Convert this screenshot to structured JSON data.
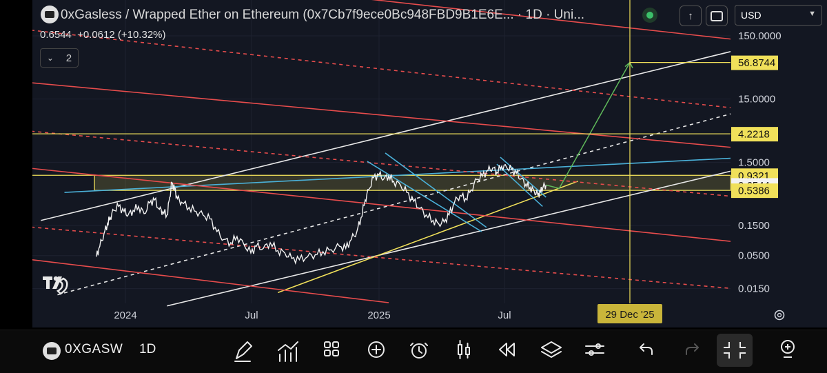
{
  "header": {
    "title": "0xGasless / Wrapped Ether on Ethereum (0x7Cb7f9ece0Bc948FBD9B1E6E... · 1D · Uni...",
    "price": "0.6544",
    "change": "+0.0612 (+10.32%)",
    "indicators_count": "2",
    "currency": "USD",
    "colors": {
      "status_dot": "#3cbf6a",
      "accent_yellow": "#f0e05a"
    }
  },
  "bottom": {
    "symbol": "0XGASW",
    "timeframe": "1D"
  },
  "chart_data": {
    "type": "line",
    "yscale": "log",
    "ylim": [
      0.008,
      250
    ],
    "y_ticks": [
      "150.0000",
      "15.0000",
      "1.5000",
      "0.1500",
      "0.0500",
      "0.0150"
    ],
    "x_ticks": [
      "2024",
      "Jul",
      "2025",
      "Jul"
    ],
    "price_labels": [
      {
        "text": "56.8744",
        "style": "yellow"
      },
      {
        "text": "4.2218",
        "style": "yellow"
      },
      {
        "text": "0.9321",
        "style": "yellow"
      },
      {
        "text": "0.6544",
        "style": "white"
      },
      {
        "text": "0.5386",
        "style": "yellow"
      }
    ],
    "crosshair_date": "29 Dec '25",
    "zone": {
      "high": 0.9321,
      "low": 0.5386
    },
    "series": [
      {
        "values": [
          [
            "2023-11-20",
            0.048
          ],
          [
            "2023-11-25",
            0.07
          ],
          [
            "2023-12-01",
            0.11
          ],
          [
            "2023-12-06",
            0.16
          ],
          [
            "2023-12-10",
            0.2
          ],
          [
            "2023-12-15",
            0.26
          ],
          [
            "2023-12-22",
            0.3
          ],
          [
            "2023-12-30",
            0.25
          ],
          [
            "2024-01-05",
            0.22
          ],
          [
            "2024-01-12",
            0.26
          ],
          [
            "2024-01-20",
            0.3
          ],
          [
            "2024-01-28",
            0.23
          ],
          [
            "2024-02-05",
            0.34
          ],
          [
            "2024-02-12",
            0.38
          ],
          [
            "2024-02-19",
            0.27
          ],
          [
            "2024-02-24",
            0.25
          ],
          [
            "2024-03-01",
            0.22
          ],
          [
            "2024-03-05",
            0.42
          ],
          [
            "2024-03-08",
            0.72
          ],
          [
            "2024-03-12",
            0.55
          ],
          [
            "2024-03-16",
            0.4
          ],
          [
            "2024-03-22",
            0.35
          ],
          [
            "2024-04-02",
            0.29
          ],
          [
            "2024-04-12",
            0.25
          ],
          [
            "2024-04-22",
            0.22
          ],
          [
            "2024-05-02",
            0.19
          ],
          [
            "2024-05-12",
            0.12
          ],
          [
            "2024-05-22",
            0.09
          ],
          [
            "2024-06-01",
            0.08
          ],
          [
            "2024-06-10",
            0.1
          ],
          [
            "2024-06-20",
            0.075
          ],
          [
            "2024-06-30",
            0.055
          ],
          [
            "2024-07-08",
            0.07
          ],
          [
            "2024-07-18",
            0.065
          ],
          [
            "2024-07-28",
            0.08
          ],
          [
            "2024-08-08",
            0.06
          ],
          [
            "2024-08-18",
            0.055
          ],
          [
            "2024-08-28",
            0.045
          ],
          [
            "2024-09-08",
            0.043
          ],
          [
            "2024-09-20",
            0.048
          ],
          [
            "2024-10-01",
            0.052
          ],
          [
            "2024-10-12",
            0.058
          ],
          [
            "2024-10-24",
            0.062
          ],
          [
            "2024-11-05",
            0.07
          ],
          [
            "2024-11-14",
            0.065
          ],
          [
            "2024-11-22",
            0.09
          ],
          [
            "2024-11-30",
            0.12
          ],
          [
            "2024-12-06",
            0.2
          ],
          [
            "2024-12-12",
            0.38
          ],
          [
            "2024-12-17",
            0.55
          ],
          [
            "2024-12-24",
            0.85
          ],
          [
            "2025-01-01",
            0.95
          ],
          [
            "2025-01-08",
            0.82
          ],
          [
            "2025-01-15",
            0.92
          ],
          [
            "2025-01-22",
            0.75
          ],
          [
            "2025-02-01",
            0.65
          ],
          [
            "2025-02-10",
            0.5
          ],
          [
            "2025-02-20",
            0.36
          ],
          [
            "2025-03-01",
            0.28
          ],
          [
            "2025-03-10",
            0.22
          ],
          [
            "2025-03-20",
            0.18
          ],
          [
            "2025-03-28",
            0.16
          ],
          [
            "2025-04-05",
            0.17
          ],
          [
            "2025-04-12",
            0.22
          ],
          [
            "2025-04-20",
            0.35
          ],
          [
            "2025-04-28",
            0.45
          ],
          [
            "2025-05-06",
            0.4
          ],
          [
            "2025-05-14",
            0.55
          ],
          [
            "2025-05-22",
            0.8
          ],
          [
            "2025-05-30",
            0.9
          ],
          [
            "2025-06-07",
            1.1
          ],
          [
            "2025-06-14",
            1.22
          ],
          [
            "2025-06-20",
            1.05
          ],
          [
            "2025-06-27",
            1.3
          ],
          [
            "2025-07-04",
            1.25
          ],
          [
            "2025-07-11",
            1.15
          ],
          [
            "2025-07-18",
            1.0
          ],
          [
            "2025-07-25",
            0.82
          ],
          [
            "2025-08-01",
            0.68
          ],
          [
            "2025-08-07",
            0.6
          ],
          [
            "2025-08-13",
            0.52
          ],
          [
            "2025-08-18",
            0.46
          ],
          [
            "2025-08-22",
            0.5
          ],
          [
            "2025-08-26",
            0.62
          ],
          [
            "2025-08-30",
            0.6544
          ]
        ]
      }
    ],
    "projection": [
      [
        "2025-08-30",
        0.6544
      ],
      [
        "2025-09-18",
        0.58
      ],
      [
        "2025-12-29",
        56.8744
      ]
    ],
    "lines": [
      {
        "color": "#e8e8e8",
        "dash": false,
        "points": [
          [
            "2023-09-01",
            0.18
          ],
          [
            "2026-08-01",
            130
          ]
        ]
      },
      {
        "color": "#e8e8e8",
        "dash": true,
        "points": [
          [
            "2023-09-25",
            0.012
          ],
          [
            "2026-08-01",
            14
          ]
        ]
      },
      {
        "color": "#e8e8e8",
        "dash": false,
        "points": [
          [
            "2024-03-01",
            0.008
          ],
          [
            "2026-08-01",
            1.65
          ]
        ]
      },
      {
        "color": "#f0e05a",
        "dash": false,
        "points": [
          [
            "2024-08-08",
            0.013
          ],
          [
            "2025-10-15",
            0.75
          ]
        ]
      },
      {
        "color": "#4ab0d8",
        "dash": false,
        "points": [
          [
            "2023-10-05",
            0.5
          ],
          [
            "2026-08-01",
            1.9
          ]
        ]
      },
      {
        "color": "#e74c4c",
        "dash": false,
        "points": [
          [
            "2023-05-01",
            3000
          ],
          [
            "2026-08-01",
            110
          ]
        ]
      },
      {
        "color": "#e74c4c",
        "dash": true,
        "points": [
          [
            "2023-05-01",
            250
          ],
          [
            "2026-08-01",
            9
          ]
        ]
      },
      {
        "color": "#e74c4c",
        "dash": false,
        "points": [
          [
            "2023-05-01",
            35
          ],
          [
            "2026-08-01",
            2.2
          ]
        ]
      },
      {
        "color": "#e74c4c",
        "dash": true,
        "points": [
          [
            "2023-05-01",
            6
          ],
          [
            "2026-08-01",
            0.37
          ]
        ]
      },
      {
        "color": "#e74c4c",
        "dash": false,
        "points": [
          [
            "2023-05-01",
            1.6
          ],
          [
            "2026-08-01",
            0.07
          ]
        ]
      },
      {
        "color": "#e74c4c",
        "dash": true,
        "points": [
          [
            "2023-05-01",
            0.18
          ],
          [
            "2026-08-01",
            0.013
          ]
        ]
      },
      {
        "color": "#e74c4c",
        "dash": false,
        "points": [
          [
            "2023-05-01",
            0.06
          ],
          [
            "2025-01-15",
            0.009
          ]
        ]
      },
      {
        "color": "#4ab0d8",
        "dash": false,
        "points": [
          [
            "2024-12-15",
            1.55
          ],
          [
            "2025-05-29",
            0.12
          ]
        ]
      },
      {
        "color": "#4ab0d8",
        "dash": false,
        "points": [
          [
            "2025-01-10",
            2.1
          ],
          [
            "2025-06-05",
            0.14
          ]
        ]
      },
      {
        "color": "#4ab0d8",
        "dash": false,
        "points": [
          [
            "2025-06-25",
            1.8
          ],
          [
            "2025-08-30",
            0.42
          ]
        ]
      },
      {
        "color": "#4ab0d8",
        "dash": false,
        "points": [
          [
            "2025-06-20",
            1.4
          ],
          [
            "2025-08-25",
            0.3
          ]
        ]
      }
    ]
  }
}
